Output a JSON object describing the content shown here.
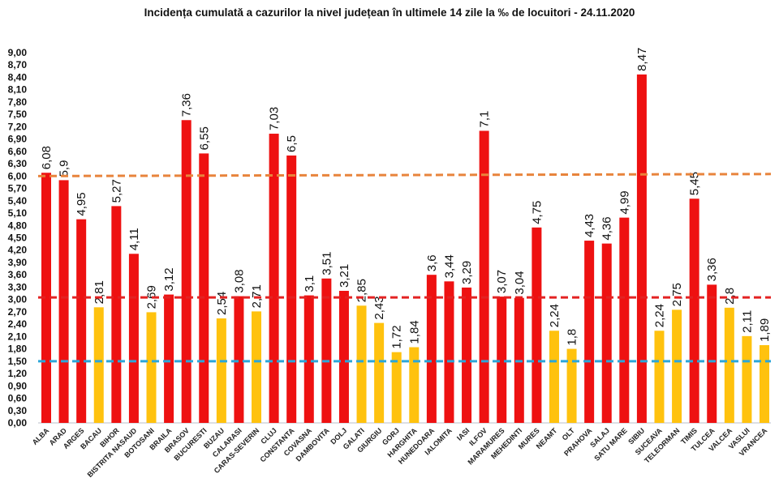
{
  "chart_data": {
    "type": "bar",
    "title": "Incidența cumulată a cazurilor la nivel județean în ultimele 14 zile la ‰ de locuitori - 24.11.2020",
    "xlabel": "",
    "ylabel": "",
    "ylim": [
      0,
      9
    ],
    "ytick_step": 0.3,
    "grid": false,
    "decimal_separator": ",",
    "categories": [
      "ALBA",
      "ARAD",
      "ARGES",
      "BACAU",
      "BIHOR",
      "BISTRITA NASAUD",
      "BOTOSANI",
      "BRAILA",
      "BRASOV",
      "BUCURESTI",
      "BUZAU",
      "CALARASI",
      "CARAS-SEVERIN",
      "CLUJ",
      "CONSTANTA",
      "COVASNA",
      "DAMBOVITA",
      "DOLJ",
      "GALATI",
      "GIURGIU",
      "GORJ",
      "HARGHITA",
      "HUNEDOARA",
      "IALOMITA",
      "IASI",
      "ILFOV",
      "MARAMURES",
      "MEHEDINTI",
      "MURES",
      "NEAMT",
      "OLT",
      "PRAHOVA",
      "SALAJ",
      "SATU MARE",
      "SIBIU",
      "SUCEAVA",
      "TELEORMAN",
      "TIMIS",
      "TULCEA",
      "VALCEA",
      "VASLUI",
      "VRANCEA"
    ],
    "values": [
      6.08,
      5.9,
      4.95,
      2.81,
      5.27,
      4.11,
      2.69,
      3.12,
      7.36,
      6.55,
      2.54,
      3.08,
      2.71,
      7.03,
      6.5,
      3.1,
      3.51,
      3.21,
      2.85,
      2.43,
      1.72,
      1.84,
      3.6,
      3.44,
      3.29,
      7.1,
      3.07,
      3.04,
      4.75,
      2.24,
      1.8,
      4.43,
      4.36,
      4.99,
      8.47,
      2.24,
      2.75,
      5.45,
      3.36,
      2.8,
      2.11,
      1.89
    ],
    "value_labels": [
      "6,08",
      "5,9",
      "4,95",
      "2,81",
      "5,27",
      "4,11",
      "2,69",
      "3,12",
      "7,36",
      "6,55",
      "2,54",
      "3,08",
      "2,71",
      "7,03",
      "6,5",
      "3,1",
      "3,51",
      "3,21",
      "2,85",
      "2,43",
      "1,72",
      "1,84",
      "3,6",
      "3,44",
      "3,29",
      "7,1",
      "3,07",
      "3,04",
      "4,75",
      "2,24",
      "1,8",
      "4,43",
      "4,36",
      "4,99",
      "8,47",
      "2,24",
      "2,75",
      "5,45",
      "3,36",
      "2,8",
      "2,11",
      "1,89"
    ],
    "bar_color_rule": {
      "threshold": 3,
      "above": "#EE1111",
      "below": "#FFC20E"
    },
    "reference_lines": [
      {
        "value": 6.0,
        "value_end": 6.05,
        "color": "#E8843C",
        "style": "dashed"
      },
      {
        "value": 3.05,
        "color": "#E32222",
        "style": "dashed"
      },
      {
        "value": 1.5,
        "color": "#2BA6D9",
        "style": "dashed"
      }
    ]
  }
}
